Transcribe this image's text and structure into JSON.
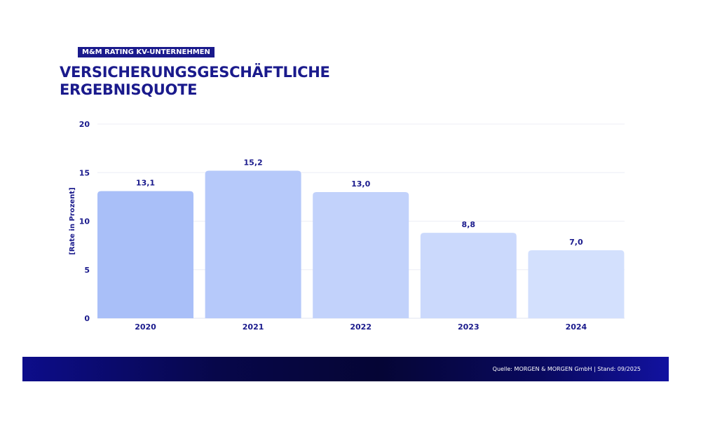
{
  "header": {
    "kicker": "M&M RATING KV-UNTERNEHMEN",
    "title_line1": "VERSICHERUNGSGESCHÄFTLICHE",
    "title_line2": "ERGEBNISQUOTE"
  },
  "chart_data": {
    "type": "bar",
    "categories": [
      "2020",
      "2021",
      "2022",
      "2023",
      "2024"
    ],
    "values": [
      13.1,
      15.2,
      13.0,
      8.8,
      7.0
    ],
    "value_labels": [
      "13,1",
      "15,2",
      "13,0",
      "8,8",
      "7,0"
    ],
    "ylabel": "[Rate in Prozent]",
    "ylim": [
      0,
      20
    ],
    "yticks": [
      0,
      5,
      10,
      15,
      20
    ],
    "grid": true,
    "bar_colors": [
      "#a9bff8",
      "#b6c9fa",
      "#c2d2fb",
      "#cbd9fc",
      "#d3e0fd"
    ],
    "text_color": "#1a1a8c"
  },
  "footer": {
    "source": "Quelle: MORGEN & MORGEN GmbH | Stand: 09/2025"
  }
}
